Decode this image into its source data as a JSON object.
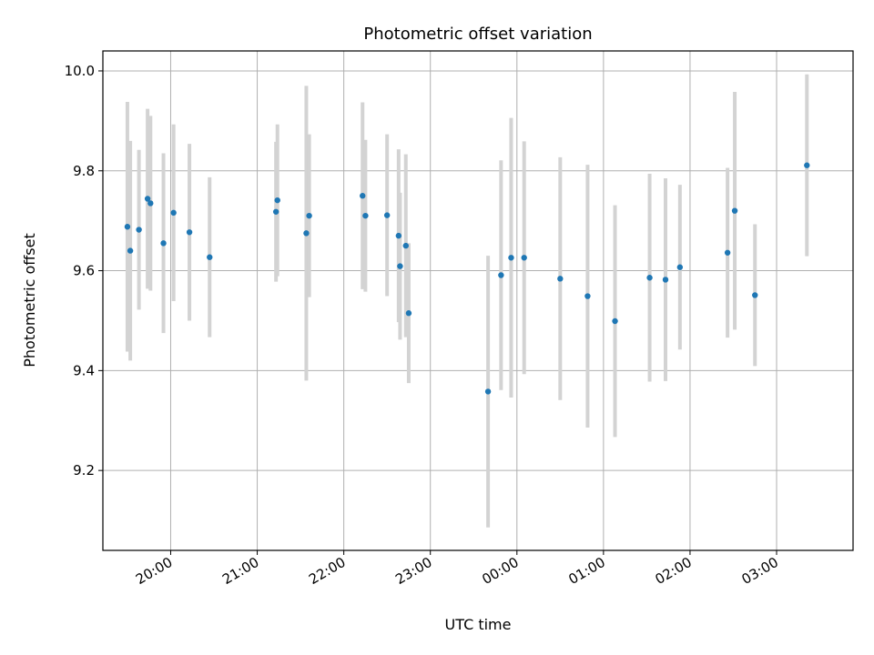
{
  "chart_data": {
    "type": "scatter",
    "title": "Photometric offset variation",
    "xlabel": "UTC time",
    "ylabel": "Photometric offset",
    "grid": true,
    "x_axis": {
      "type": "time",
      "range": [
        "19:13",
        "03:53"
      ],
      "ticks": [
        "20:00",
        "21:00",
        "22:00",
        "23:00",
        "00:00",
        "01:00",
        "02:00",
        "03:00"
      ]
    },
    "y_axis": {
      "range": [
        9.04,
        10.04
      ],
      "ticks": [
        "9.2",
        "9.4",
        "9.6",
        "9.8",
        "10.0"
      ]
    },
    "colors": {
      "marker": "#1f77b4",
      "errorbar": "#d3d3d3",
      "grid": "#b0b0b0"
    },
    "series": [
      {
        "points": [
          {
            "time": "19:30",
            "y": 9.688,
            "err": 0.25
          },
          {
            "time": "19:32",
            "y": 9.64,
            "err": 0.22
          },
          {
            "time": "19:38",
            "y": 9.682,
            "err": 0.16
          },
          {
            "time": "19:44",
            "y": 9.744,
            "err": 0.18
          },
          {
            "time": "19:46",
            "y": 9.735,
            "err": 0.175
          },
          {
            "time": "19:55",
            "y": 9.655,
            "err": 0.18
          },
          {
            "time": "20:02",
            "y": 9.716,
            "err": 0.177
          },
          {
            "time": "20:13",
            "y": 9.677,
            "err": 0.177
          },
          {
            "time": "20:27",
            "y": 9.627,
            "err": 0.16
          },
          {
            "time": "21:13",
            "y": 9.718,
            "err": 0.14
          },
          {
            "time": "21:14",
            "y": 9.741,
            "err": 0.152
          },
          {
            "time": "21:34",
            "y": 9.675,
            "err": 0.295
          },
          {
            "time": "21:36",
            "y": 9.71,
            "err": 0.163
          },
          {
            "time": "22:13",
            "y": 9.75,
            "err": 0.187
          },
          {
            "time": "22:15",
            "y": 9.71,
            "err": 0.152
          },
          {
            "time": "22:30",
            "y": 9.711,
            "err": 0.162
          },
          {
            "time": "22:38",
            "y": 9.67,
            "err": 0.173
          },
          {
            "time": "22:39",
            "y": 9.609,
            "err": 0.147
          },
          {
            "time": "22:43",
            "y": 9.65,
            "err": 0.183
          },
          {
            "time": "22:45",
            "y": 9.515,
            "err": 0.14
          },
          {
            "time": "23:40",
            "y": 9.358,
            "err": 0.272
          },
          {
            "time": "23:49",
            "y": 9.591,
            "err": 0.23
          },
          {
            "time": "23:56",
            "y": 9.626,
            "err": 0.28
          },
          {
            "time": "00:05",
            "y": 9.626,
            "err": 0.233
          },
          {
            "time": "00:30",
            "y": 9.584,
            "err": 0.243
          },
          {
            "time": "00:49",
            "y": 9.549,
            "err": 0.263
          },
          {
            "time": "01:08",
            "y": 9.499,
            "err": 0.232
          },
          {
            "time": "01:32",
            "y": 9.586,
            "err": 0.208
          },
          {
            "time": "01:43",
            "y": 9.582,
            "err": 0.203
          },
          {
            "time": "01:53",
            "y": 9.607,
            "err": 0.165
          },
          {
            "time": "02:26",
            "y": 9.636,
            "err": 0.17
          },
          {
            "time": "02:31",
            "y": 9.72,
            "err": 0.238
          },
          {
            "time": "02:45",
            "y": 9.551,
            "err": 0.142
          },
          {
            "time": "03:21",
            "y": 9.811,
            "err": 0.182
          }
        ]
      }
    ]
  }
}
